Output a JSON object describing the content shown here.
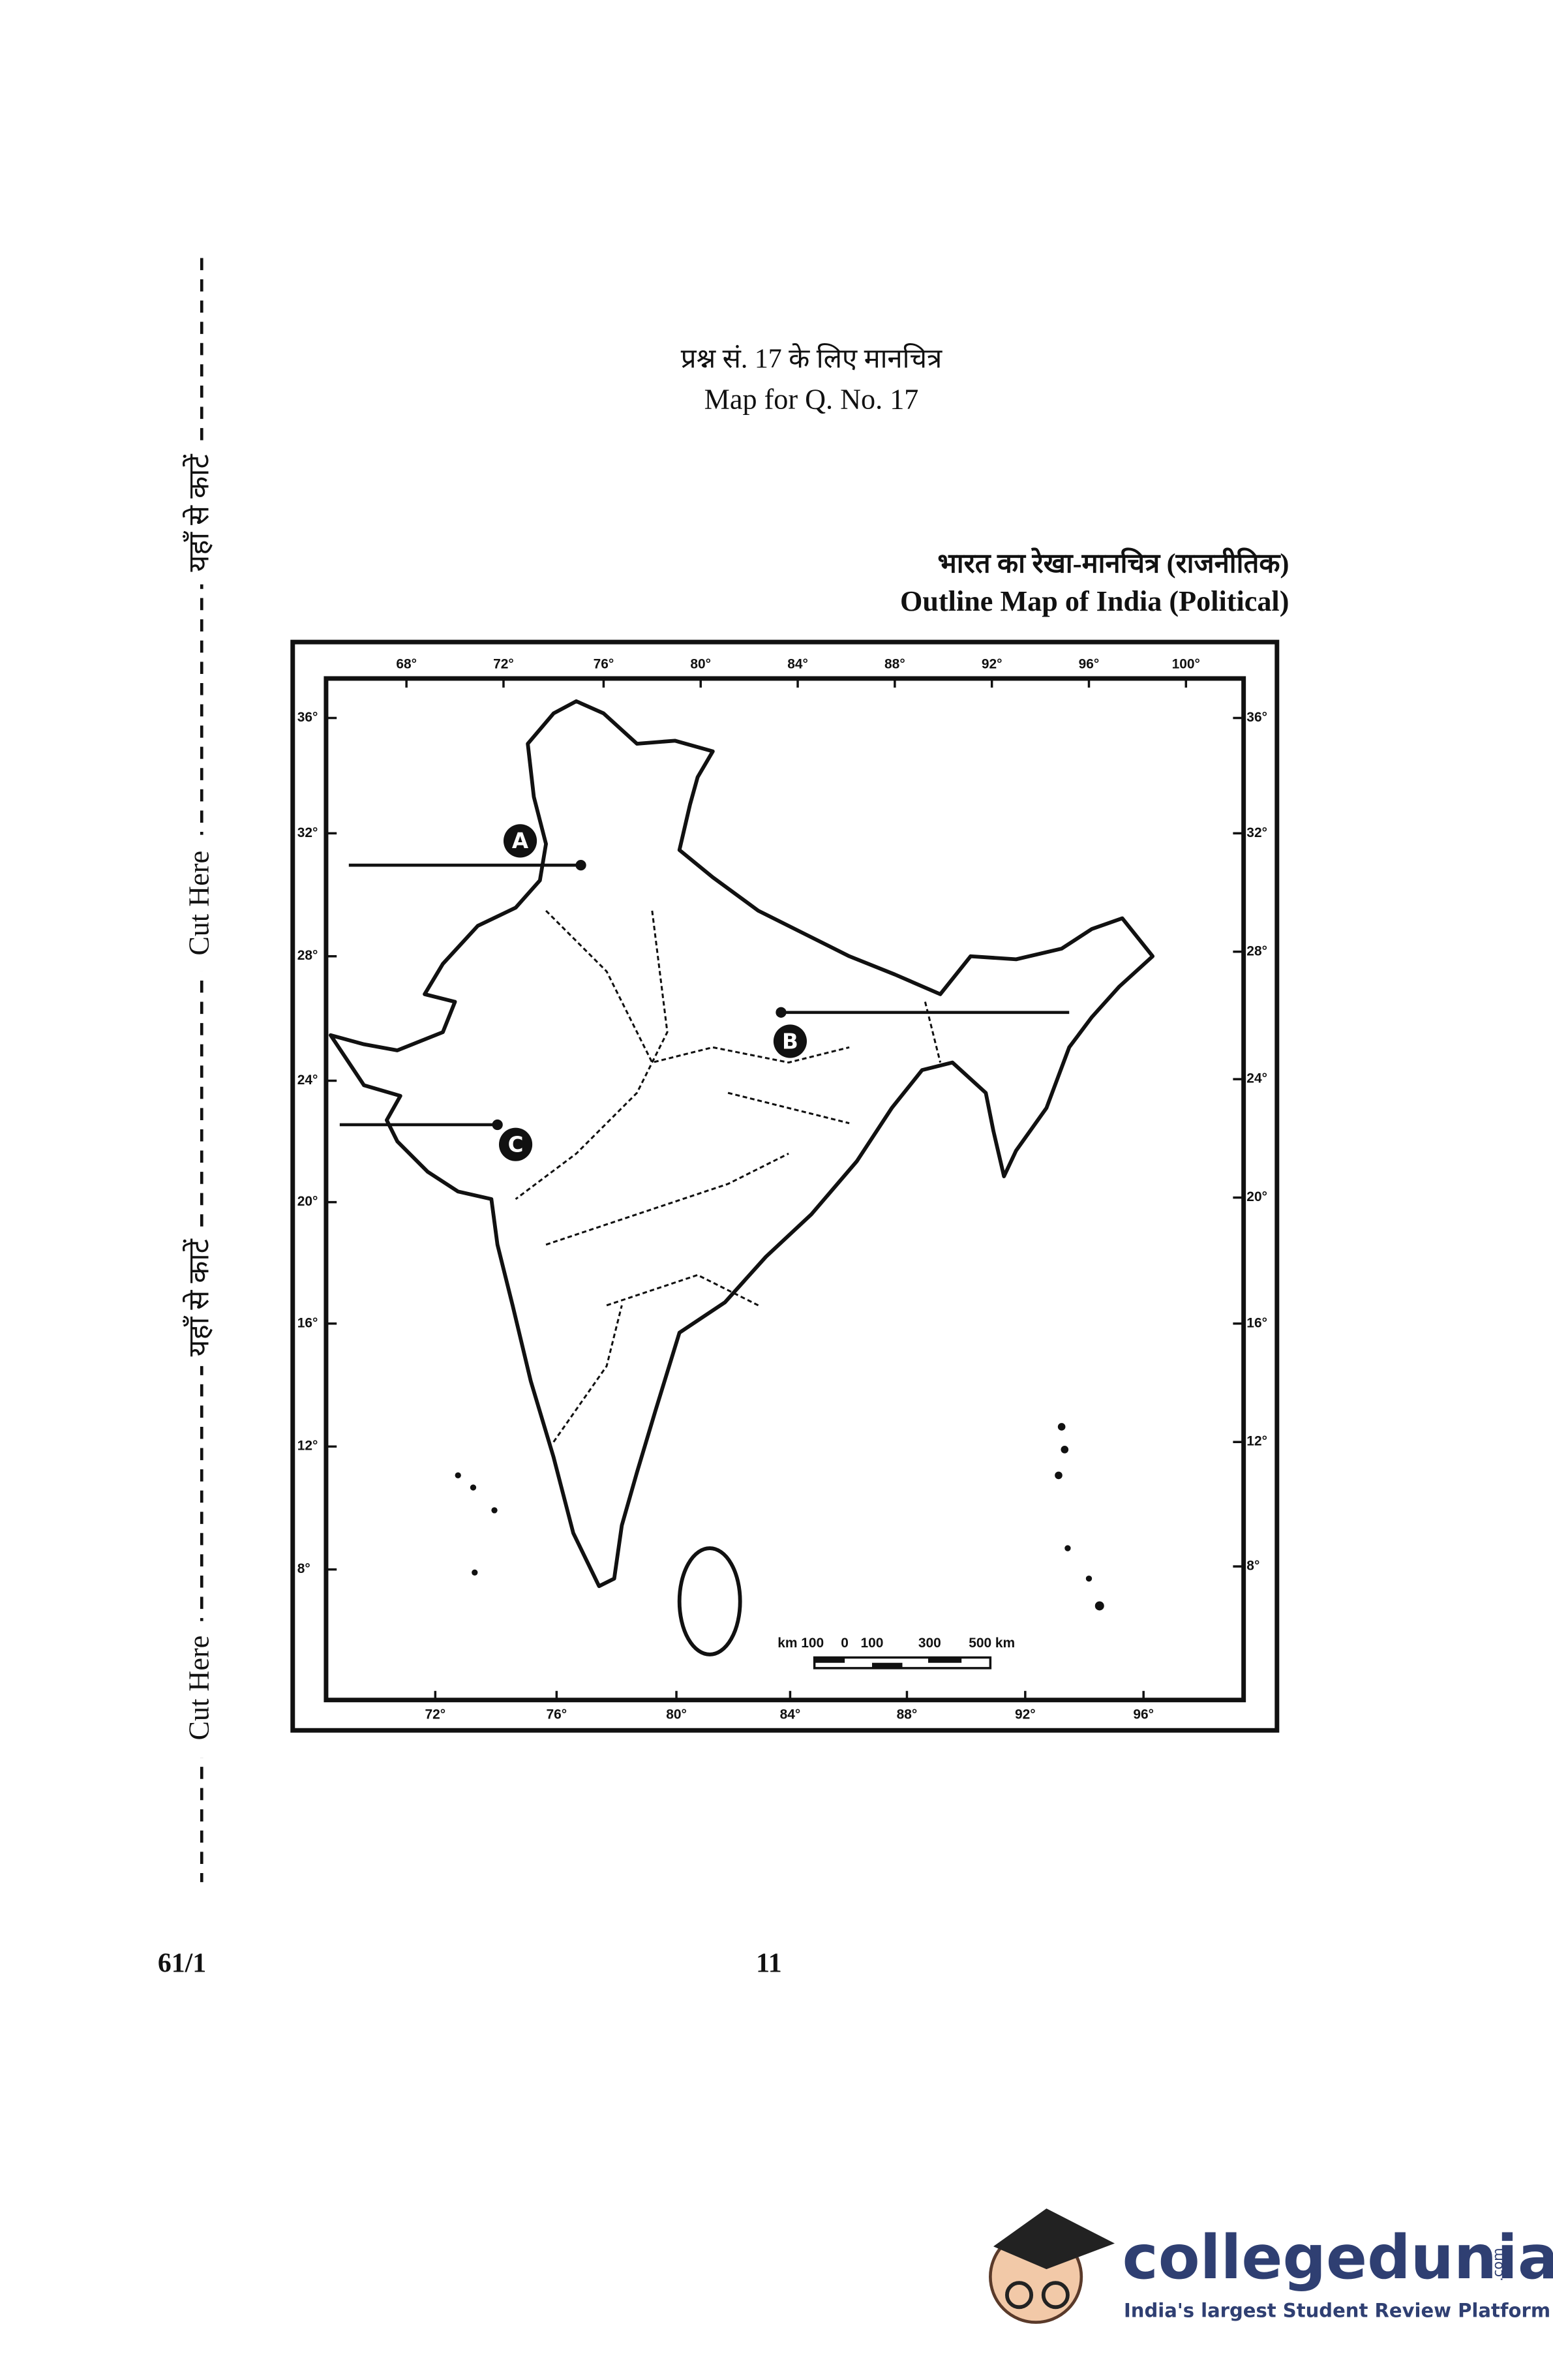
{
  "header": {
    "question_hi": "प्रश्न सं. 17 के लिए मानचित्र",
    "question_en": "Map for Q. No. 17"
  },
  "map": {
    "title_hi": "भारत का रेखा-मानचित्र (राजनीतिक)",
    "title_en": "Outline Map of India (Political)",
    "top_longitudes": [
      "68°",
      "72°",
      "76°",
      "80°",
      "84°",
      "88°",
      "92°",
      "96°",
      "100°"
    ],
    "bottom_longitudes": [
      "72°",
      "76°",
      "80°",
      "84°",
      "88°",
      "92°",
      "96°"
    ],
    "left_latitudes": [
      "36°",
      "32°",
      "28°",
      "24°",
      "20°",
      "16°",
      "12°",
      "8°"
    ],
    "right_latitudes": [
      "36°",
      "32°",
      "28°",
      "24°",
      "20°",
      "16°",
      "12°",
      "8°"
    ],
    "markers": [
      "A",
      "B",
      "C"
    ],
    "scale": [
      "km 100",
      "0",
      "100",
      "300",
      "500 km"
    ]
  },
  "cut_labels": [
    "यहाँ से काटें",
    "Cut Here",
    "यहाँ से काटें",
    "Cut Here"
  ],
  "footer": {
    "code": "61/1",
    "page": "11"
  },
  "logo": {
    "name": "collegedunia",
    "domain": ".com",
    "tagline": "India's largest Student Review Platform"
  }
}
